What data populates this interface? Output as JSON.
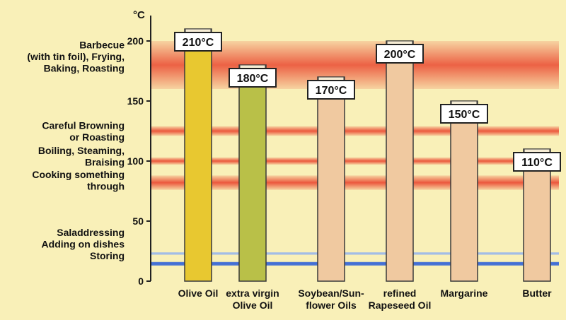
{
  "chart_data": {
    "type": "bar",
    "ylabel": "°C",
    "ylim": [
      0,
      210
    ],
    "yticks": [
      0,
      50,
      100,
      150,
      200
    ],
    "categories": [
      [
        "Olive Oil"
      ],
      [
        "extra virgin",
        "Olive Oil"
      ],
      [
        "Soybean/Sun-",
        "flower Oils"
      ],
      [
        "refined",
        "Rapeseed Oil"
      ],
      [
        "Margarine"
      ],
      [
        "Butter"
      ]
    ],
    "values": [
      210,
      180,
      170,
      200,
      150,
      110
    ],
    "value_labels": [
      "210°C",
      "180°C",
      "170°C",
      "200°C",
      "150°C",
      "110°C"
    ],
    "bar_colors": [
      "#e8c830",
      "#b9c048",
      "#f0c9a0",
      "#f0c9a0",
      "#f0c9a0",
      "#f0c9a0"
    ],
    "bands": [
      {
        "low": 160,
        "high": 200,
        "color": "#e8321e",
        "kind": "hot"
      },
      {
        "low": 121,
        "high": 129,
        "color": "#e8321e",
        "kind": "warm"
      },
      {
        "low": 97,
        "high": 103,
        "color": "#e8321e",
        "kind": "warm"
      },
      {
        "low": 76,
        "high": 88,
        "color": "#e8321e",
        "kind": "warm"
      },
      {
        "low": 22,
        "high": 24,
        "color": "#9fbbe8",
        "kind": "cool"
      },
      {
        "low": 13,
        "high": 16,
        "color": "#3d6bd6",
        "kind": "cool"
      }
    ],
    "annotations": [
      {
        "lines": [
          "Barbecue",
          "(with tin foil), Frying,",
          "Baking, Roasting"
        ],
        "y": 187
      },
      {
        "lines": [
          "Careful Browning",
          "or Roasting"
        ],
        "y": 125
      },
      {
        "lines": [
          "Boiling, Steaming,",
          "Braising"
        ],
        "y": 104
      },
      {
        "lines": [
          "Cooking something",
          "through"
        ],
        "y": 84
      },
      {
        "lines": [
          "Saladdressing",
          "Adding on dishes",
          "Storing"
        ],
        "y": 31
      }
    ]
  }
}
